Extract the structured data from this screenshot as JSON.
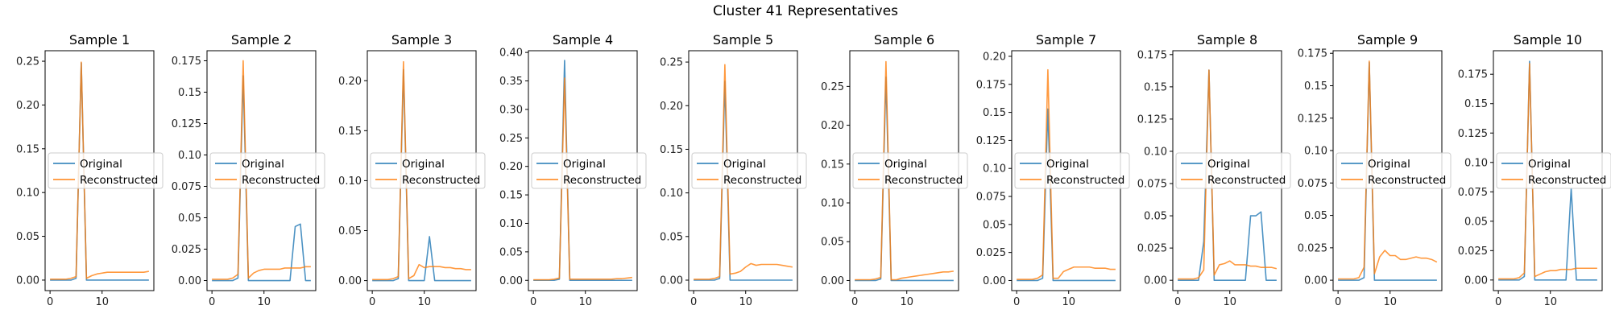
{
  "figure": {
    "title": "Cluster 41 Representatives"
  },
  "chart_data": {
    "type": "line",
    "legend_placement": "center-left",
    "x": [
      0,
      1,
      2,
      3,
      4,
      5,
      6,
      7,
      8,
      9,
      10,
      11,
      12,
      13,
      14,
      15,
      16,
      17,
      18,
      19
    ],
    "xticks": [
      0,
      10
    ],
    "legend": [
      "Original",
      "Reconstructed"
    ],
    "colors": {
      "Original": "#1f77b4",
      "Reconstructed": "#ff7f0e"
    },
    "panels": [
      {
        "title": "Sample 1",
        "ylim": [
          -0.012,
          0.262
        ],
        "yticks": [
          0,
          0.05,
          0.1,
          0.15,
          0.2,
          0.25
        ],
        "series": [
          {
            "name": "Original",
            "values": [
              0,
              0,
              0,
              0,
              0,
              0.002,
              0.248,
              0,
              0,
              0,
              0,
              0,
              0,
              0,
              0,
              0,
              0,
              0,
              0,
              0
            ]
          },
          {
            "name": "Reconstructed",
            "values": [
              0.001,
              0.001,
              0.001,
              0.001,
              0.002,
              0.004,
              0.249,
              0.002,
              0.005,
              0.007,
              0.008,
              0.009,
              0.009,
              0.009,
              0.009,
              0.009,
              0.009,
              0.009,
              0.009,
              0.01
            ]
          }
        ]
      },
      {
        "title": "Sample 2",
        "ylim": [
          -0.008,
          0.183
        ],
        "yticks": [
          0,
          0.025,
          0.05,
          0.075,
          0.1,
          0.125,
          0.15,
          0.175
        ],
        "series": [
          {
            "name": "Original",
            "values": [
              0,
              0,
              0,
              0,
              0,
              0.002,
              0.163,
              0,
              0,
              0,
              0,
              0,
              0,
              0,
              0,
              0,
              0.043,
              0.045,
              0,
              0
            ]
          },
          {
            "name": "Reconstructed",
            "values": [
              0.001,
              0.001,
              0.001,
              0.001,
              0.002,
              0.005,
              0.175,
              0.002,
              0.006,
              0.008,
              0.009,
              0.009,
              0.009,
              0.009,
              0.01,
              0.01,
              0.01,
              0.01,
              0.011,
              0.011
            ]
          }
        ]
      },
      {
        "title": "Sample 3",
        "ylim": [
          -0.01,
          0.23
        ],
        "yticks": [
          0,
          0.05,
          0.1,
          0.15,
          0.2
        ],
        "series": [
          {
            "name": "Original",
            "values": [
              0,
              0,
              0,
              0,
              0,
              0.002,
              0.211,
              0,
              0,
              0,
              0,
              0.044,
              0,
              0,
              0,
              0,
              0,
              0,
              0,
              0
            ]
          },
          {
            "name": "Reconstructed",
            "values": [
              0.001,
              0.001,
              0.001,
              0.001,
              0.002,
              0.004,
              0.219,
              0.002,
              0.005,
              0.016,
              0.013,
              0.014,
              0.014,
              0.014,
              0.013,
              0.013,
              0.012,
              0.012,
              0.011,
              0.011
            ]
          }
        ]
      },
      {
        "title": "Sample 4",
        "ylim": [
          -0.018,
          0.403
        ],
        "yticks": [
          0,
          0.05,
          0.1,
          0.15,
          0.2,
          0.25,
          0.3,
          0.35,
          0.4
        ],
        "series": [
          {
            "name": "Original",
            "values": [
              0,
              0,
              0,
              0,
              0,
              0.002,
              0.386,
              0,
              0,
              0,
              0,
              0,
              0,
              0,
              0,
              0,
              0,
              0,
              0,
              0
            ]
          },
          {
            "name": "Reconstructed",
            "values": [
              0.001,
              0.001,
              0.001,
              0.001,
              0.002,
              0.004,
              0.355,
              0.002,
              0.002,
              0.002,
              0.002,
              0.002,
              0.002,
              0.002,
              0.002,
              0.002,
              0.003,
              0.003,
              0.004,
              0.005
            ]
          }
        ]
      },
      {
        "title": "Sample 5",
        "ylim": [
          -0.012,
          0.263
        ],
        "yticks": [
          0,
          0.05,
          0.1,
          0.15,
          0.2,
          0.25
        ],
        "series": [
          {
            "name": "Original",
            "values": [
              0,
              0,
              0,
              0,
              0,
              0.002,
              0.228,
              0,
              0,
              0,
              0,
              0,
              0,
              0,
              0,
              0,
              0,
              0,
              0,
              0
            ]
          },
          {
            "name": "Reconstructed",
            "values": [
              0.001,
              0.001,
              0.001,
              0.001,
              0.002,
              0.004,
              0.247,
              0.007,
              0.008,
              0.01,
              0.015,
              0.019,
              0.017,
              0.018,
              0.018,
              0.018,
              0.018,
              0.017,
              0.016,
              0.015
            ]
          }
        ]
      },
      {
        "title": "Sample 6",
        "ylim": [
          -0.013,
          0.296
        ],
        "yticks": [
          0,
          0.05,
          0.1,
          0.15,
          0.2,
          0.25
        ],
        "series": [
          {
            "name": "Original",
            "values": [
              0,
              0,
              0,
              0,
              0,
              0.002,
              0.262,
              0,
              0,
              0,
              0,
              0,
              0,
              0,
              0,
              0,
              0,
              0,
              0,
              0
            ]
          },
          {
            "name": "Reconstructed",
            "values": [
              0.001,
              0.001,
              0.001,
              0.001,
              0.002,
              0.004,
              0.282,
              0.001,
              0.001,
              0.003,
              0.004,
              0.005,
              0.006,
              0.007,
              0.008,
              0.009,
              0.01,
              0.011,
              0.011,
              0.012
            ]
          }
        ]
      },
      {
        "title": "Sample 7",
        "ylim": [
          -0.009,
          0.205
        ],
        "yticks": [
          0,
          0.025,
          0.05,
          0.075,
          0.1,
          0.125,
          0.15,
          0.175,
          0.2
        ],
        "series": [
          {
            "name": "Original",
            "values": [
              0,
              0,
              0,
              0,
              0,
              0.002,
              0.153,
              0,
              0,
              0,
              0,
              0,
              0,
              0,
              0,
              0,
              0,
              0,
              0,
              0
            ]
          },
          {
            "name": "Reconstructed",
            "values": [
              0.001,
              0.001,
              0.001,
              0.001,
              0.002,
              0.005,
              0.188,
              0.002,
              0.002,
              0.008,
              0.01,
              0.012,
              0.012,
              0.012,
              0.012,
              0.011,
              0.011,
              0.011,
              0.01,
              0.01
            ]
          }
        ]
      },
      {
        "title": "Sample 8",
        "ylim": [
          -0.008,
          0.178
        ],
        "yticks": [
          0,
          0.025,
          0.05,
          0.075,
          0.1,
          0.125,
          0.15,
          0.175
        ],
        "series": [
          {
            "name": "Original",
            "values": [
              0,
              0,
              0,
              0,
              0,
              0.03,
              0.163,
              0,
              0,
              0,
              0,
              0,
              0,
              0,
              0.05,
              0.05,
              0.053,
              0,
              0,
              0
            ]
          },
          {
            "name": "Reconstructed",
            "values": [
              0.001,
              0.001,
              0.001,
              0.001,
              0.002,
              0.008,
              0.163,
              0.004,
              0.012,
              0.013,
              0.015,
              0.012,
              0.012,
              0.012,
              0.011,
              0.011,
              0.01,
              0.01,
              0.01,
              0.009
            ]
          }
        ]
      },
      {
        "title": "Sample 9",
        "ylim": [
          -0.008,
          0.177
        ],
        "yticks": [
          0,
          0.025,
          0.05,
          0.075,
          0.1,
          0.125,
          0.15,
          0.175
        ],
        "series": [
          {
            "name": "Original",
            "values": [
              0,
              0,
              0,
              0,
              0,
              0.002,
              0.168,
              0,
              0,
              0,
              0,
              0,
              0,
              0,
              0,
              0,
              0,
              0,
              0,
              0
            ]
          },
          {
            "name": "Reconstructed",
            "values": [
              0.001,
              0.001,
              0.001,
              0.001,
              0.002,
              0.01,
              0.169,
              0.005,
              0.018,
              0.023,
              0.019,
              0.019,
              0.016,
              0.016,
              0.017,
              0.018,
              0.017,
              0.017,
              0.016,
              0.014
            ]
          }
        ]
      },
      {
        "title": "Sample 10",
        "ylim": [
          -0.009,
          0.195
        ],
        "yticks": [
          0,
          0.025,
          0.05,
          0.075,
          0.1,
          0.125,
          0.15,
          0.175
        ],
        "series": [
          {
            "name": "Original",
            "values": [
              0,
              0,
              0,
              0,
              0,
              0.003,
              0.186,
              0,
              0,
              0,
              0,
              0,
              0,
              0,
              0.078,
              0,
              0,
              0,
              0,
              0
            ]
          },
          {
            "name": "Reconstructed",
            "values": [
              0.001,
              0.001,
              0.001,
              0.001,
              0.002,
              0.006,
              0.184,
              0.003,
              0.005,
              0.007,
              0.008,
              0.008,
              0.009,
              0.009,
              0.009,
              0.01,
              0.01,
              0.01,
              0.01,
              0.01
            ]
          }
        ]
      }
    ]
  }
}
